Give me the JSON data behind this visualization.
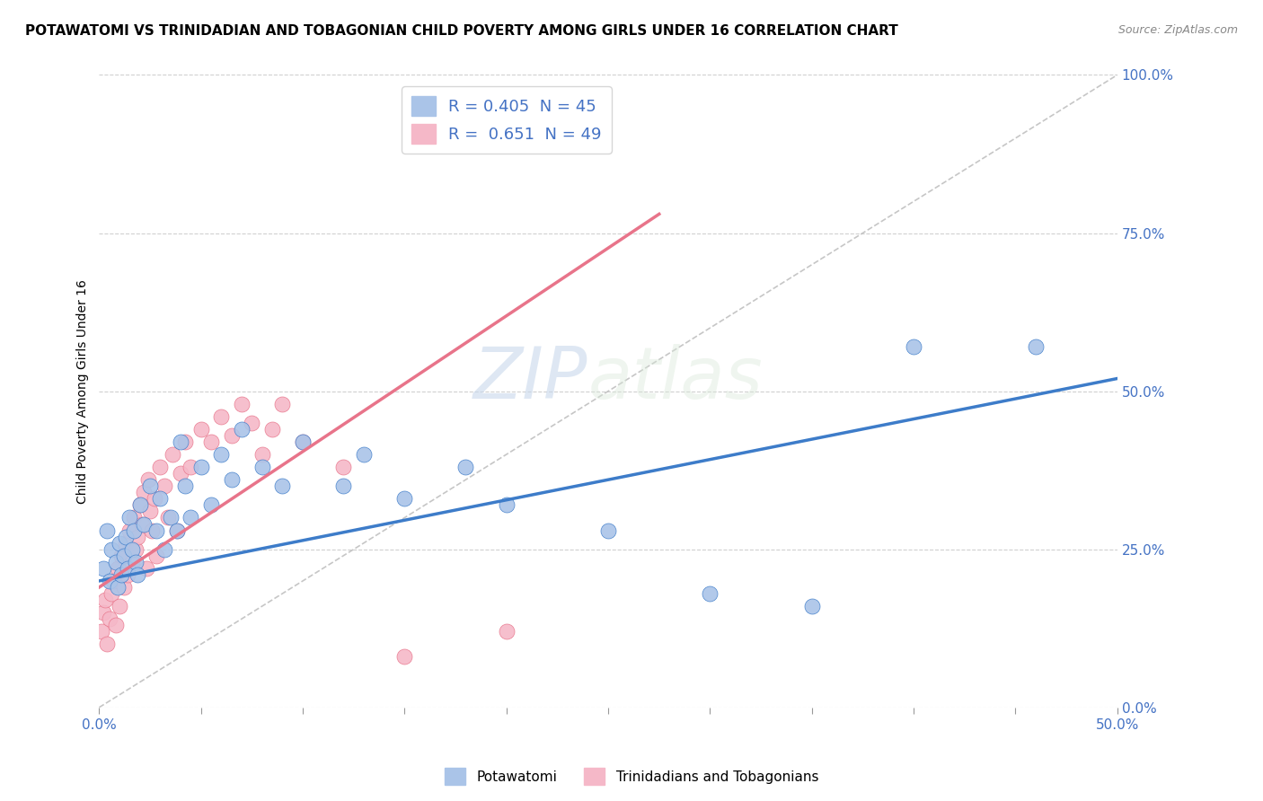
{
  "title": "POTAWATOMI VS TRINIDADIAN AND TOBAGONIAN CHILD POVERTY AMONG GIRLS UNDER 16 CORRELATION CHART",
  "source": "Source: ZipAtlas.com",
  "ylabel": "Child Poverty Among Girls Under 16",
  "xlim": [
    0.0,
    0.5
  ],
  "ylim": [
    0.0,
    1.0
  ],
  "yticks": [
    0.0,
    0.25,
    0.5,
    0.75,
    1.0
  ],
  "ytick_labels": [
    "0.0%",
    "25.0%",
    "50.0%",
    "75.0%",
    "100.0%"
  ],
  "xtick_major": [
    0.0,
    0.5
  ],
  "xtick_minor": [
    0.05,
    0.1,
    0.15,
    0.2,
    0.25,
    0.3,
    0.35,
    0.4,
    0.45
  ],
  "xtick_labels_major": [
    "0.0%",
    "50.0%"
  ],
  "legend_r_blue": "R = 0.405",
  "legend_n_blue": "N = 45",
  "legend_r_pink": "R =  0.651",
  "legend_n_pink": "N = 49",
  "blue_scatter_x": [
    0.002,
    0.004,
    0.005,
    0.006,
    0.008,
    0.009,
    0.01,
    0.011,
    0.012,
    0.013,
    0.014,
    0.015,
    0.016,
    0.017,
    0.018,
    0.019,
    0.02,
    0.022,
    0.025,
    0.028,
    0.03,
    0.032,
    0.035,
    0.038,
    0.04,
    0.042,
    0.045,
    0.05,
    0.055,
    0.06,
    0.065,
    0.07,
    0.08,
    0.09,
    0.1,
    0.12,
    0.13,
    0.15,
    0.18,
    0.2,
    0.25,
    0.3,
    0.35,
    0.4,
    0.46
  ],
  "blue_scatter_y": [
    0.22,
    0.28,
    0.2,
    0.25,
    0.23,
    0.19,
    0.26,
    0.21,
    0.24,
    0.27,
    0.22,
    0.3,
    0.25,
    0.28,
    0.23,
    0.21,
    0.32,
    0.29,
    0.35,
    0.28,
    0.33,
    0.25,
    0.3,
    0.28,
    0.42,
    0.35,
    0.3,
    0.38,
    0.32,
    0.4,
    0.36,
    0.44,
    0.38,
    0.35,
    0.42,
    0.35,
    0.4,
    0.33,
    0.38,
    0.32,
    0.28,
    0.18,
    0.16,
    0.57,
    0.57
  ],
  "pink_scatter_x": [
    0.001,
    0.002,
    0.003,
    0.004,
    0.005,
    0.006,
    0.007,
    0.008,
    0.009,
    0.01,
    0.011,
    0.012,
    0.013,
    0.014,
    0.015,
    0.016,
    0.017,
    0.018,
    0.019,
    0.02,
    0.021,
    0.022,
    0.023,
    0.024,
    0.025,
    0.026,
    0.027,
    0.028,
    0.03,
    0.032,
    0.034,
    0.036,
    0.038,
    0.04,
    0.042,
    0.045,
    0.05,
    0.055,
    0.06,
    0.065,
    0.07,
    0.075,
    0.08,
    0.085,
    0.09,
    0.1,
    0.12,
    0.15,
    0.2
  ],
  "pink_scatter_y": [
    0.12,
    0.15,
    0.17,
    0.1,
    0.14,
    0.18,
    0.2,
    0.13,
    0.22,
    0.16,
    0.24,
    0.19,
    0.26,
    0.21,
    0.28,
    0.23,
    0.3,
    0.25,
    0.27,
    0.32,
    0.29,
    0.34,
    0.22,
    0.36,
    0.31,
    0.28,
    0.33,
    0.24,
    0.38,
    0.35,
    0.3,
    0.4,
    0.28,
    0.37,
    0.42,
    0.38,
    0.44,
    0.42,
    0.46,
    0.43,
    0.48,
    0.45,
    0.4,
    0.44,
    0.48,
    0.42,
    0.38,
    0.08,
    0.12
  ],
  "blue_line_x": [
    0.0,
    0.5
  ],
  "blue_line_y": [
    0.2,
    0.52
  ],
  "pink_line_x": [
    0.0,
    0.275
  ],
  "pink_line_y": [
    0.19,
    0.78
  ],
  "diag_line_x": [
    0.0,
    0.5
  ],
  "diag_line_y": [
    0.0,
    1.0
  ],
  "blue_color": "#3d7cc9",
  "pink_color": "#e8748a",
  "blue_scatter_color": "#aac4e8",
  "pink_scatter_color": "#f5b8c8",
  "diag_color": "#c0c0c0",
  "watermark_zip": "ZIP",
  "watermark_atlas": "atlas",
  "legend_label_blue": "Potawatomi",
  "legend_label_pink": "Trinidadians and Tobagonians",
  "background_color": "#ffffff",
  "title_fontsize": 11,
  "axis_label_fontsize": 10,
  "tick_fontsize": 11,
  "tick_color": "#4472c4",
  "grid_color": "#d0d0d0"
}
